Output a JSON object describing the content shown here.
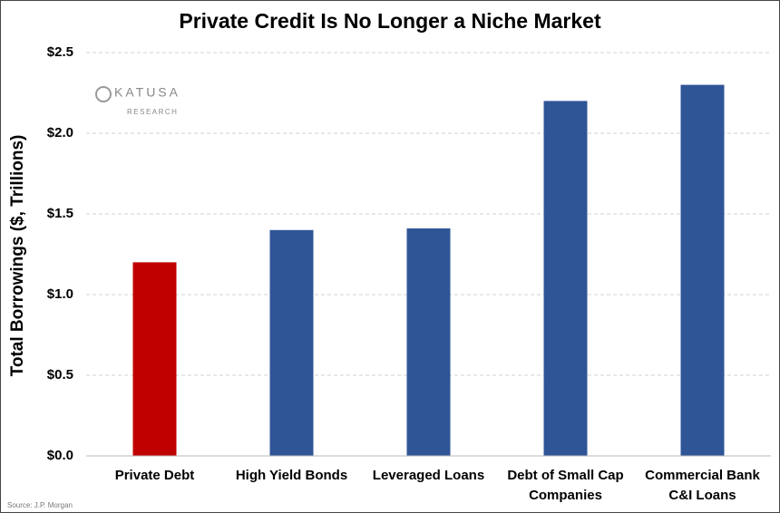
{
  "chart_data": {
    "type": "bar",
    "title": "Private Credit Is No Longer a Niche Market",
    "y_label": "Total Borrowings ($, Trillions)",
    "categories": [
      "Private Debt",
      "High Yield Bonds",
      "Leveraged Loans",
      "Debt of Small Cap\nCompanies",
      "Commercial Bank\nC&I Loans"
    ],
    "values": [
      1.2,
      1.4,
      1.41,
      2.2,
      2.3
    ],
    "colors": [
      "#c00000",
      "#2f5597",
      "#2f5597",
      "#2f5597",
      "#2f5597"
    ],
    "ylim": [
      0,
      2.5
    ],
    "yticks": [
      {
        "value": 0,
        "label": "$0.0"
      },
      {
        "value": 0.5,
        "label": "$0.5"
      },
      {
        "value": 1,
        "label": "$1.0"
      },
      {
        "value": 1.5,
        "label": "$1.5"
      },
      {
        "value": 2,
        "label": "$2.0"
      },
      {
        "value": 2.5,
        "label": "$2.5"
      }
    ],
    "grid": true,
    "source": "Source: J.P. Morgan",
    "logo": {
      "name": "KATUSA",
      "sub": "RESEARCH"
    }
  }
}
